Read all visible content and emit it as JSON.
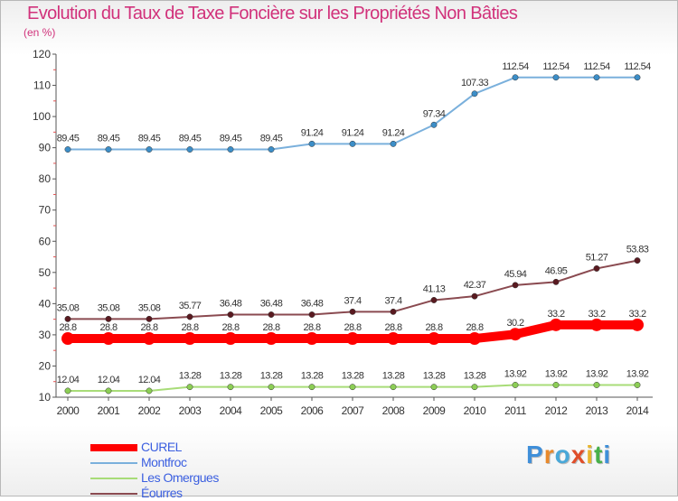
{
  "title": "Evolution du Taux de Taxe Foncière sur les Propriétés Non Bâties",
  "unit_label": "(en %)",
  "logo": {
    "letters": [
      "P",
      "r",
      "o",
      "x",
      "i",
      "t",
      "i"
    ],
    "colors": [
      "#3f8fd9",
      "#e8892b",
      "#4aa8d8",
      "#e04e2a",
      "#e8b42b",
      "#48b04a",
      "#3f8fd9"
    ]
  },
  "chart_data": {
    "type": "line",
    "title": "Evolution du Taux de Taxe Foncière sur les Propriétés Non Bâties",
    "ylabel": "(en %)",
    "x": [
      "2000",
      "2001",
      "2002",
      "2003",
      "2004",
      "2005",
      "2006",
      "2007",
      "2008",
      "2009",
      "2010",
      "2011",
      "2012",
      "2013",
      "2014"
    ],
    "ylim": [
      10,
      120
    ],
    "yticks": [
      10,
      20,
      30,
      40,
      50,
      60,
      70,
      80,
      90,
      100,
      110,
      120
    ],
    "grid": false,
    "legend_position": "bottom-left",
    "series": [
      {
        "name": "Montfroc",
        "color": "#7ab0dc",
        "marker": "#3c8ec8",
        "values": [
          89.45,
          89.45,
          89.45,
          89.45,
          89.45,
          89.45,
          91.24,
          91.24,
          91.24,
          97.34,
          107.33,
          112.54,
          112.54,
          112.54,
          112.54
        ],
        "labels": [
          "89.45",
          "89.45",
          "89.45",
          "89.45",
          "89.45",
          "89.45",
          "91.24",
          "91.24",
          "91.24",
          "97.34",
          "107.33",
          "112.54",
          "112.54",
          "112.54",
          "112.54"
        ]
      },
      {
        "name": "Éourres",
        "color": "#8a4a50",
        "marker": "#5a1a20",
        "values": [
          35.08,
          35.08,
          35.08,
          35.77,
          36.48,
          36.48,
          36.48,
          37.4,
          37.4,
          41.13,
          42.37,
          45.94,
          46.95,
          51.27,
          53.83
        ],
        "labels": [
          "35.08",
          "35.08",
          "35.08",
          "35.77",
          "36.48",
          "36.48",
          "36.48",
          "37.4",
          "37.4",
          "41.13",
          "42.37",
          "45.94",
          "46.95",
          "51.27",
          "53.83"
        ]
      },
      {
        "name": "CUREL",
        "color": "#ff0000",
        "marker": "#ff0000",
        "values": [
          28.8,
          28.8,
          28.8,
          28.8,
          28.8,
          28.8,
          28.8,
          28.8,
          28.8,
          28.8,
          28.8,
          30.2,
          33.2,
          33.2,
          33.2
        ],
        "labels": [
          "28.8",
          "28.8",
          "28.8",
          "28.8",
          "28.8",
          "28.8",
          "28.8",
          "28.8",
          "28.8",
          "28.8",
          "28.8",
          "30.2",
          "33.2",
          "33.2",
          "33.2"
        ]
      },
      {
        "name": "Les Omergues",
        "color": "#a8dc78",
        "marker": "#8cce55",
        "values": [
          12.04,
          12.04,
          12.04,
          13.28,
          13.28,
          13.28,
          13.28,
          13.28,
          13.28,
          13.28,
          13.28,
          13.92,
          13.92,
          13.92,
          13.92
        ],
        "labels": [
          "12.04",
          "12.04",
          "12.04",
          "13.28",
          "13.28",
          "13.28",
          "13.28",
          "13.28",
          "13.28",
          "13.28",
          "13.28",
          "13.92",
          "13.92",
          "13.92",
          "13.92"
        ]
      }
    ],
    "legend": [
      "CUREL",
      "Montfroc",
      "Les Omergues",
      "Éourres"
    ]
  }
}
